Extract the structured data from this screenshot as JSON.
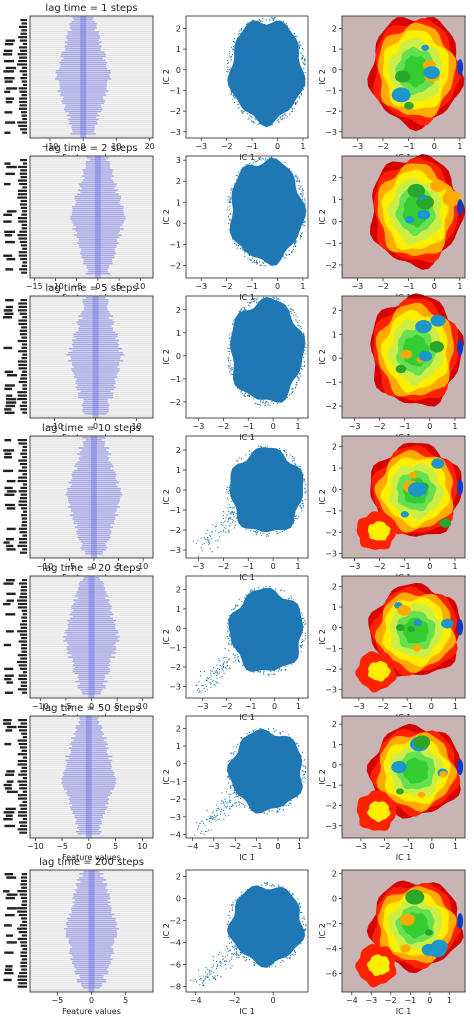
{
  "figure": {
    "rows": [
      {
        "title": "lag time = 1 steps",
        "feat_xticks": [
          -10,
          0,
          10,
          20
        ],
        "feat_xlim": [
          -16,
          21
        ],
        "sc_xticks": [
          -3,
          -2,
          -1,
          0,
          1
        ],
        "sc_xlim": [
          -3.6,
          1.2
        ],
        "sc_yticks": [
          -3,
          -2,
          -1,
          0,
          1,
          2
        ],
        "sc_ylim": [
          -3.3,
          2.6
        ],
        "fe_xticks": [
          -3,
          -2,
          -1,
          0,
          1
        ],
        "fe_xlim": [
          -3.6,
          1.2
        ],
        "fe_yticks": [
          -3,
          -2,
          -1,
          0,
          1,
          2
        ],
        "fe_ylim": [
          -3.3,
          2.6
        ]
      },
      {
        "title": "lag time = 2 steps",
        "feat_xticks": [
          -15,
          -10,
          -5,
          0,
          5,
          10
        ],
        "feat_xlim": [
          -16,
          13
        ],
        "sc_xticks": [
          -3,
          -2,
          -1,
          0,
          1
        ],
        "sc_xlim": [
          -3.6,
          1.2
        ],
        "sc_yticks": [
          -2,
          -1,
          0,
          1,
          2,
          3
        ],
        "sc_ylim": [
          -2.6,
          3.2
        ],
        "fe_xticks": [
          -3,
          -2,
          -1,
          0,
          1
        ],
        "fe_xlim": [
          -3.6,
          1.2
        ],
        "fe_yticks": [
          -2,
          -1,
          0,
          1,
          2
        ],
        "fe_ylim": [
          -2.6,
          3.0
        ]
      },
      {
        "title": "lag time = 5 steps",
        "feat_xticks": [
          -10,
          0,
          10
        ],
        "feat_xlim": [
          -16,
          14
        ],
        "sc_xticks": [
          -3,
          -2,
          -1,
          0,
          1
        ],
        "sc_xlim": [
          -3.5,
          1.4
        ],
        "sc_yticks": [
          -2,
          -1,
          0,
          1,
          2
        ],
        "sc_ylim": [
          -2.7,
          2.6
        ],
        "fe_xticks": [
          -3,
          -2,
          -1,
          0,
          1
        ],
        "fe_xlim": [
          -3.5,
          1.4
        ],
        "fe_yticks": [
          -2,
          -1,
          0,
          1,
          2
        ],
        "fe_ylim": [
          -2.5,
          2.6
        ]
      },
      {
        "title": "lag time = 10 steps",
        "feat_xticks": [
          -10,
          -5,
          0,
          5,
          10
        ],
        "feat_xlim": [
          -13,
          12
        ],
        "sc_xticks": [
          -3,
          -2,
          -1,
          0,
          1
        ],
        "sc_xlim": [
          -3.5,
          1.4
        ],
        "sc_yticks": [
          -3,
          -2,
          -1,
          0,
          1,
          2
        ],
        "sc_ylim": [
          -3.4,
          2.7
        ],
        "fe_xticks": [
          -3,
          -2,
          -1,
          0,
          1
        ],
        "fe_xlim": [
          -3.5,
          1.4
        ],
        "fe_yticks": [
          -3,
          -2,
          -1,
          0,
          1,
          2
        ],
        "fe_ylim": [
          -3.2,
          2.5
        ]
      },
      {
        "title": "lag time = 20 steps",
        "feat_xticks": [
          -10,
          -5,
          0,
          5,
          10
        ],
        "feat_xlim": [
          -12,
          12
        ],
        "sc_xticks": [
          -3,
          -2,
          -1,
          0,
          1
        ],
        "sc_xlim": [
          -3.7,
          1.4
        ],
        "sc_yticks": [
          -3,
          -2,
          -1,
          0,
          1,
          2
        ],
        "sc_ylim": [
          -3.6,
          2.7
        ],
        "fe_xticks": [
          -3,
          -2,
          -1,
          0,
          1
        ],
        "fe_xlim": [
          -3.7,
          1.4
        ],
        "fe_yticks": [
          -3,
          -2,
          -1,
          0,
          1,
          2
        ],
        "fe_ylim": [
          -3.4,
          2.5
        ]
      },
      {
        "title": "lag time = 50 steps",
        "feat_xticks": [
          -10,
          -5,
          0,
          5,
          10
        ],
        "feat_xlim": [
          -11,
          12
        ],
        "sc_xticks": [
          -4,
          -3,
          -2,
          -1,
          0,
          1
        ],
        "sc_xlim": [
          -4.3,
          1.4
        ],
        "sc_yticks": [
          -4,
          -3,
          -2,
          -1,
          0,
          1,
          2
        ],
        "sc_ylim": [
          -4.2,
          2.7
        ],
        "fe_xticks": [
          -3,
          -2,
          -1,
          0,
          1
        ],
        "fe_xlim": [
          -3.8,
          1.4
        ],
        "fe_yticks": [
          -3,
          -2,
          -1,
          0,
          1,
          2
        ],
        "fe_ylim": [
          -3.6,
          2.4
        ]
      },
      {
        "title": "lag time = 200 steps",
        "feat_xticks": [
          -5,
          0,
          5
        ],
        "feat_xlim": [
          -9,
          9
        ],
        "sc_xticks": [
          -4,
          -2,
          0
        ],
        "sc_xlim": [
          -4.5,
          1.8
        ],
        "sc_yticks": [
          -8,
          -6,
          -4,
          -2,
          0,
          2
        ],
        "sc_ylim": [
          -8.5,
          2.6
        ],
        "fe_xticks": [
          -4,
          -3,
          -2,
          -1,
          0,
          1
        ],
        "fe_xlim": [
          -4.5,
          1.8
        ],
        "fe_yticks": [
          -6,
          -4,
          -2,
          0,
          2
        ],
        "fe_ylim": [
          -7.5,
          2.3
        ]
      }
    ],
    "feat_xlabel": "Feature values",
    "ic1_label": "IC 1",
    "ic2_label": "IC 2",
    "colors": {
      "feature_bg": "#e4e4e4",
      "feature_bar": "#6e6ee6",
      "scatter": "#1f77b4",
      "fe_bg": "#c8b4b4",
      "fe_levels": [
        "#0a3cc8",
        "#1e96c8",
        "#2aa62a",
        "#33cc33",
        "#66e050",
        "#ccee44",
        "#ffee00",
        "#ffaa00",
        "#ff2200",
        "#d60000"
      ]
    }
  },
  "chart_data": [
    {
      "type": "bar",
      "panel": "feature-histogram",
      "title": "lag time = 1 steps",
      "xlabel": "Feature values",
      "xlim": [
        -16,
        21
      ]
    },
    {
      "type": "scatter",
      "panel": "ic-scatter",
      "title": "lag time = 1 steps",
      "xlabel": "IC 1",
      "ylabel": "IC 2",
      "xlim": [
        -3.6,
        1.2
      ],
      "ylim": [
        -3.3,
        2.6
      ]
    },
    {
      "type": "heatmap",
      "panel": "free-energy",
      "title": "lag time = 1 steps",
      "xlabel": "IC 1",
      "ylabel": "IC 2"
    },
    {
      "type": "bar",
      "panel": "feature-histogram",
      "title": "lag time = 2 steps",
      "xlabel": "Feature values",
      "xlim": [
        -16,
        13
      ]
    },
    {
      "type": "scatter",
      "panel": "ic-scatter",
      "title": "lag time = 2 steps",
      "xlabel": "IC 1",
      "ylabel": "IC 2"
    },
    {
      "type": "heatmap",
      "panel": "free-energy",
      "title": "lag time = 2 steps",
      "xlabel": "IC 1",
      "ylabel": "IC 2"
    },
    {
      "type": "bar",
      "panel": "feature-histogram",
      "title": "lag time = 5 steps",
      "xlabel": "Feature values"
    },
    {
      "type": "scatter",
      "panel": "ic-scatter",
      "title": "lag time = 5 steps",
      "xlabel": "IC 1",
      "ylabel": "IC 2"
    },
    {
      "type": "heatmap",
      "panel": "free-energy",
      "title": "lag time = 5 steps",
      "xlabel": "IC 1",
      "ylabel": "IC 2"
    },
    {
      "type": "bar",
      "panel": "feature-histogram",
      "title": "lag time = 10 steps",
      "xlabel": "Feature values"
    },
    {
      "type": "scatter",
      "panel": "ic-scatter",
      "title": "lag time = 10 steps",
      "xlabel": "IC 1",
      "ylabel": "IC 2"
    },
    {
      "type": "heatmap",
      "panel": "free-energy",
      "title": "lag time = 10 steps",
      "xlabel": "IC 1",
      "ylabel": "IC 2"
    },
    {
      "type": "bar",
      "panel": "feature-histogram",
      "title": "lag time = 20 steps",
      "xlabel": "Feature values"
    },
    {
      "type": "scatter",
      "panel": "ic-scatter",
      "title": "lag time = 20 steps",
      "xlabel": "IC 1",
      "ylabel": "IC 2"
    },
    {
      "type": "heatmap",
      "panel": "free-energy",
      "title": "lag time = 20 steps",
      "xlabel": "IC 1",
      "ylabel": "IC 2"
    },
    {
      "type": "bar",
      "panel": "feature-histogram",
      "title": "lag time = 50 steps",
      "xlabel": "Feature values"
    },
    {
      "type": "scatter",
      "panel": "ic-scatter",
      "title": "lag time = 50 steps",
      "xlabel": "IC 1",
      "ylabel": "IC 2"
    },
    {
      "type": "heatmap",
      "panel": "free-energy",
      "title": "lag time = 50 steps",
      "xlabel": "IC 1",
      "ylabel": "IC 2"
    },
    {
      "type": "bar",
      "panel": "feature-histogram",
      "title": "lag time = 200 steps",
      "xlabel": "Feature values"
    },
    {
      "type": "scatter",
      "panel": "ic-scatter",
      "title": "lag time = 200 steps",
      "xlabel": "IC 1",
      "ylabel": "IC 2"
    },
    {
      "type": "heatmap",
      "panel": "free-energy",
      "title": "lag time = 200 steps",
      "xlabel": "IC 1",
      "ylabel": "IC 2"
    }
  ]
}
